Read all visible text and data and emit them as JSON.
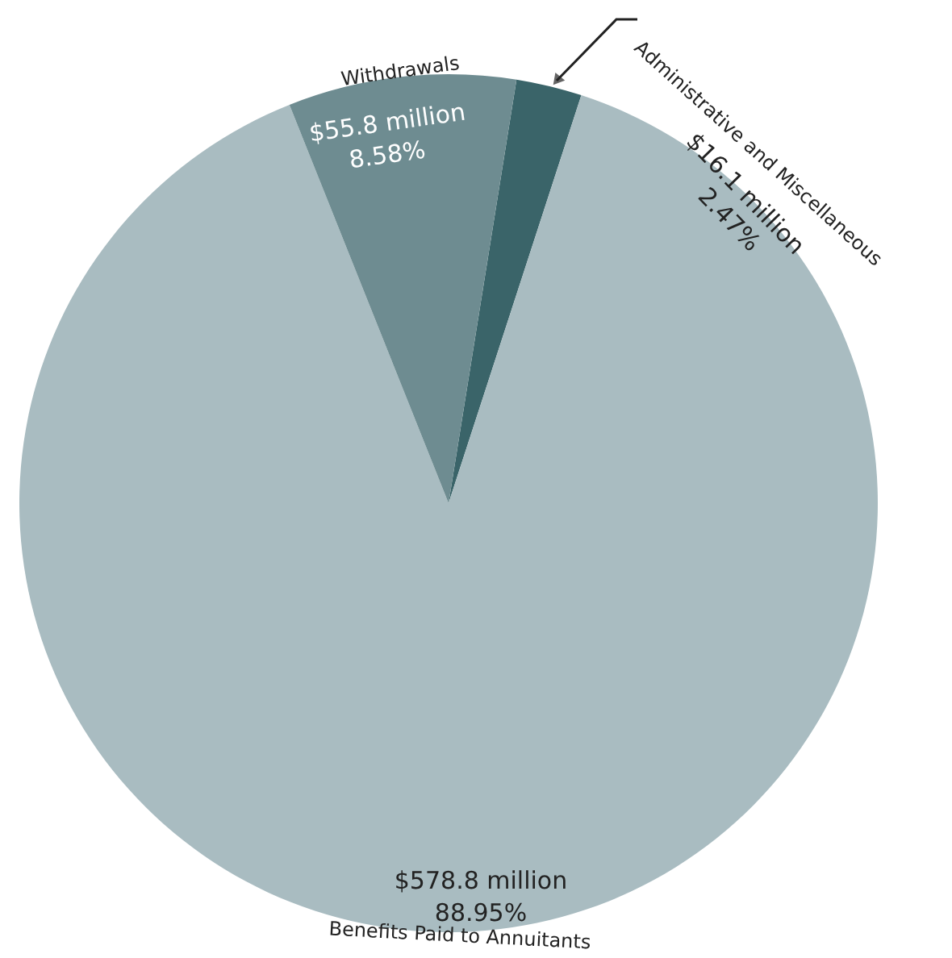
{
  "chart_data": {
    "type": "pie",
    "categories": [
      "Administrative and Miscellaneous",
      "Benefits Paid to Annuitants",
      "Withdrawals"
    ],
    "values": [
      16.1,
      578.8,
      55.8
    ],
    "colors": [
      "#3a6469",
      "#a9bcc1",
      "#6e8c91"
    ],
    "value_labels": [
      "$16.1 million",
      "$578.8 million",
      "$55.8 million"
    ],
    "annotations": [
      "2.47%",
      "88.95%",
      "8.58%"
    ]
  }
}
